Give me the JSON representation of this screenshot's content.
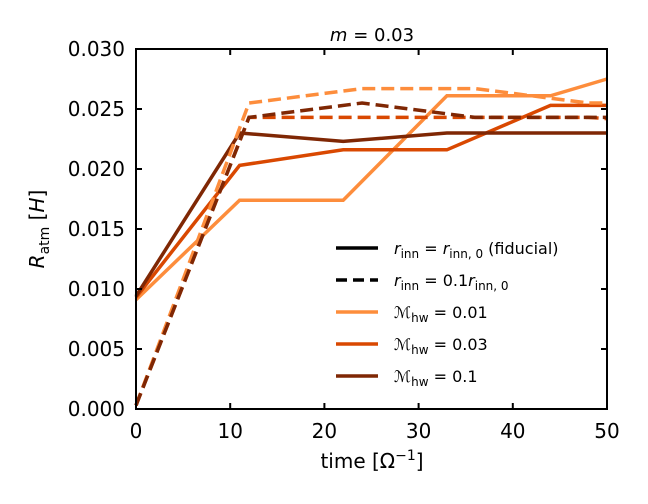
{
  "chart_data": {
    "type": "line",
    "title": "m = 0.03",
    "xlabel": "time [Ω⁻¹]",
    "ylabel": "R_atm [H]",
    "xlim": [
      0,
      50
    ],
    "ylim": [
      0,
      0.03
    ],
    "xticks": [
      0,
      10,
      20,
      30,
      40,
      50
    ],
    "xtick_labels": [
      "0",
      "10",
      "20",
      "30",
      "40",
      "50"
    ],
    "yticks": [
      0,
      0.005,
      0.01,
      0.015,
      0.02,
      0.025,
      0.03
    ],
    "ytick_labels": [
      "0.000",
      "0.005",
      "0.010",
      "0.015",
      "0.020",
      "0.025",
      "0.030"
    ],
    "colors": {
      "mhw_001": "#fd8d3c",
      "mhw_003": "#d94801",
      "mhw_01": "#7f2704",
      "black": "#000000"
    },
    "series": [
      {
        "name": "Mhw = 0.01, fiducial",
        "color_key": "mhw_001",
        "style": "solid",
        "x": [
          0,
          11,
          22,
          33,
          44,
          50
        ],
        "y": [
          0.0091,
          0.0174,
          0.0174,
          0.0261,
          0.0261,
          0.0275
        ]
      },
      {
        "name": "Mhw = 0.03, fiducial",
        "color_key": "mhw_003",
        "style": "solid",
        "x": [
          0,
          11,
          22,
          33,
          44,
          50
        ],
        "y": [
          0.0093,
          0.0203,
          0.0216,
          0.0216,
          0.0253,
          0.0253
        ]
      },
      {
        "name": "Mhw = 0.1, fiducial",
        "color_key": "mhw_01",
        "style": "solid",
        "x": [
          0,
          11,
          22,
          33,
          44,
          50
        ],
        "y": [
          0.0094,
          0.023,
          0.0223,
          0.023,
          0.023,
          0.023
        ]
      },
      {
        "name": "Mhw = 0.01, 0.1 r_inn,0",
        "color_key": "mhw_001",
        "style": "dashed",
        "x": [
          0,
          12,
          24,
          36,
          48,
          50
        ],
        "y": [
          0.0003,
          0.0255,
          0.0267,
          0.0267,
          0.0255,
          0.0255
        ]
      },
      {
        "name": "Mhw = 0.03, 0.1 r_inn,0",
        "color_key": "mhw_003",
        "style": "dashed",
        "x": [
          0,
          12,
          24,
          36,
          48,
          50
        ],
        "y": [
          0.0003,
          0.0243,
          0.0243,
          0.0243,
          0.0243,
          0.0242
        ]
      },
      {
        "name": "Mhw = 0.1, 0.1 r_inn,0",
        "color_key": "mhw_01",
        "style": "dashed",
        "x": [
          0,
          12,
          24,
          36,
          48,
          50
        ],
        "y": [
          0.0003,
          0.0243,
          0.0255,
          0.0243,
          0.0243,
          0.0243
        ]
      }
    ],
    "legend": {
      "placement": "lower-right",
      "entries": [
        {
          "label": "r_inn = r_inn,0 (fiducial)",
          "color_key": "black",
          "style": "solid"
        },
        {
          "label": "r_inn = 0.1 r_inn,0",
          "color_key": "black",
          "style": "dashed"
        },
        {
          "label": "M_hw = 0.01",
          "color_key": "mhw_001",
          "style": "solid"
        },
        {
          "label": "M_hw = 0.03",
          "color_key": "mhw_003",
          "style": "solid"
        },
        {
          "label": "M_hw = 0.1",
          "color_key": "mhw_01",
          "style": "solid"
        }
      ]
    }
  }
}
